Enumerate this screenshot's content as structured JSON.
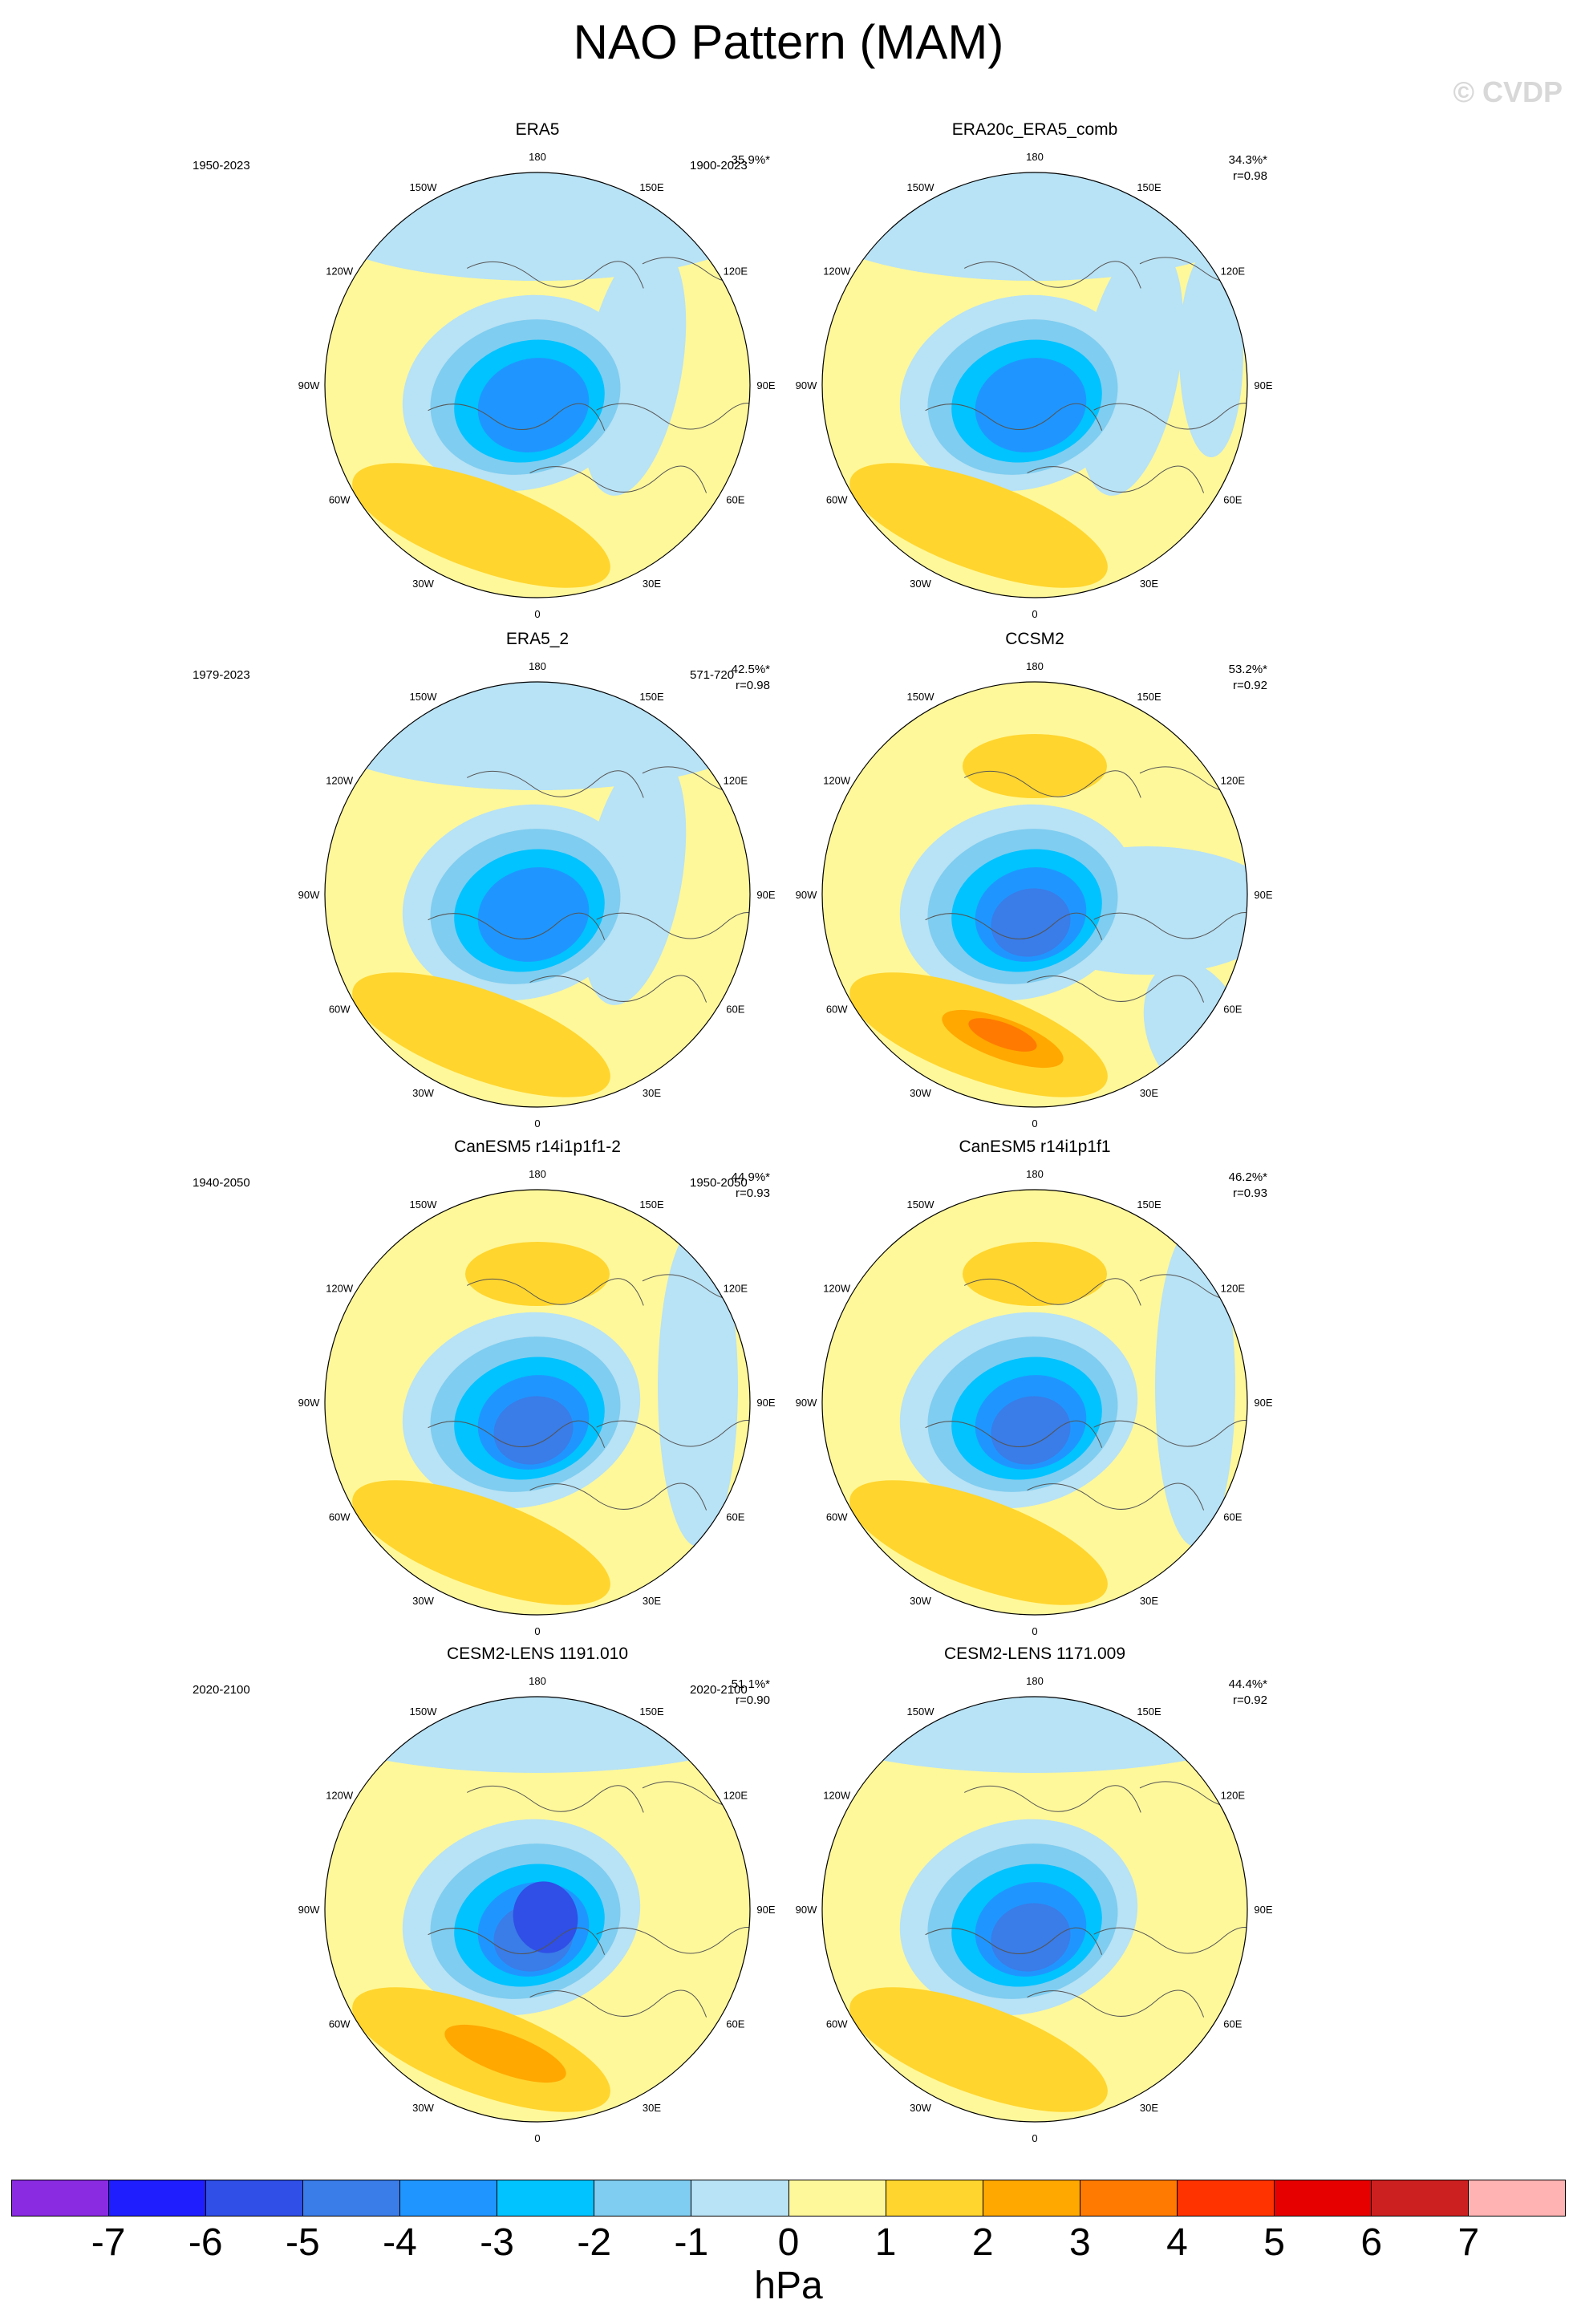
{
  "title": "NAO Pattern (MAM)",
  "watermark": "© CVDP",
  "lon_labels": [
    "180",
    "150E",
    "120E",
    "90E",
    "60E",
    "30E",
    "0",
    "30W",
    "60W",
    "90W",
    "120W",
    "150W"
  ],
  "panels": [
    {
      "name": "ERA5",
      "period": "1950-2023",
      "pct": "35.9%*",
      "r": ""
    },
    {
      "name": "ERA20c_ERA5_comb",
      "period": "1900-2023",
      "pct": "34.3%*",
      "r": "r=0.98"
    },
    {
      "name": "ERA5_2",
      "period": "1979-2023",
      "pct": "42.5%*",
      "r": "r=0.98"
    },
    {
      "name": "CCSM2",
      "period": "571-720",
      "pct": "53.2%*",
      "r": "r=0.92"
    },
    {
      "name": "CanESM5 r14i1p1f1-2",
      "period": "1940-2050",
      "pct": "44.9%*",
      "r": "r=0.93"
    },
    {
      "name": "CanESM5 r14i1p1f1",
      "period": "1950-2050",
      "pct": "46.2%*",
      "r": "r=0.93"
    },
    {
      "name": "CESM2-LENS 1191.010",
      "period": "2020-2100",
      "pct": "51.1%*",
      "r": "r=0.90"
    },
    {
      "name": "CESM2-LENS 1171.009",
      "period": "2020-2100",
      "pct": "44.4%*",
      "r": "r=0.92"
    }
  ],
  "colorbar": {
    "colors": [
      "#8a2be2",
      "#1e1eff",
      "#2f4fe6",
      "#3a7ce8",
      "#1f96ff",
      "#00c3ff",
      "#7fcdf0",
      "#b8e2f5",
      "#fff89a",
      "#ffd52e",
      "#ffa800",
      "#ff7a00",
      "#ff3300",
      "#e60000",
      "#cc2020",
      "#ffb3b3"
    ],
    "labels": [
      "-7",
      "-6",
      "-5",
      "-4",
      "-3",
      "-2",
      "-1",
      "0",
      "1",
      "2",
      "3",
      "4",
      "5",
      "6",
      "7"
    ],
    "unit": "hPa"
  }
}
